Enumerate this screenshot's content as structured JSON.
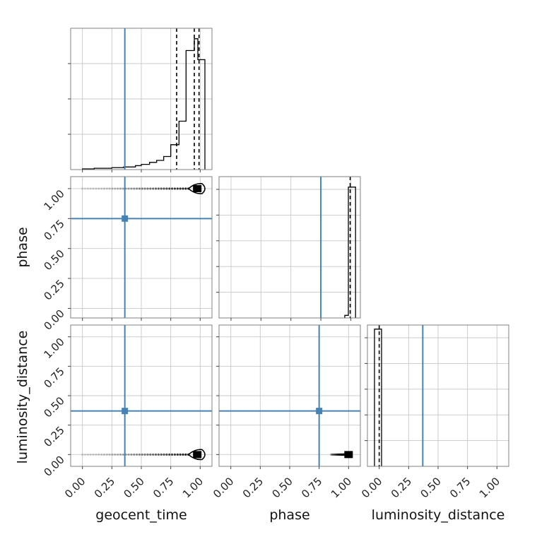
{
  "chart_data": {
    "type": "corner",
    "parameters": [
      "geocent_time",
      "phase",
      "luminosity_distance"
    ],
    "tick_labels": [
      "0.00",
      "0.25",
      "0.50",
      "0.75",
      "1.00"
    ],
    "truths": {
      "geocent_time": 0.36,
      "phase": 0.75,
      "luminosity_distance": 0.37
    },
    "truth_color": "#4682b4",
    "grid": true,
    "diagonals": [
      {
        "parameter": "geocent_time",
        "xlim": [
          -0.1,
          1.1
        ],
        "bins": [
          {
            "start": 0.0,
            "end": 0.1,
            "height": 0.005
          },
          {
            "start": 0.1,
            "end": 0.25,
            "height": 0.01
          },
          {
            "start": 0.25,
            "end": 0.35,
            "height": 0.015
          },
          {
            "start": 0.35,
            "end": 0.45,
            "height": 0.02
          },
          {
            "start": 0.45,
            "end": 0.5,
            "height": 0.03
          },
          {
            "start": 0.5,
            "end": 0.57,
            "height": 0.04
          },
          {
            "start": 0.57,
            "end": 0.63,
            "height": 0.055
          },
          {
            "start": 0.63,
            "end": 0.69,
            "height": 0.07
          },
          {
            "start": 0.69,
            "end": 0.75,
            "height": 0.1
          },
          {
            "start": 0.75,
            "end": 0.82,
            "height": 0.19
          },
          {
            "start": 0.82,
            "end": 0.88,
            "height": 0.37
          },
          {
            "start": 0.88,
            "end": 0.95,
            "height": 0.91
          },
          {
            "start": 0.95,
            "end": 0.98,
            "height": 1.0
          },
          {
            "start": 0.98,
            "end": 1.04,
            "height": 0.84
          }
        ],
        "quantiles": [
          0.8,
          0.95,
          0.99
        ],
        "ylim": [
          0,
          1.08
        ]
      },
      {
        "parameter": "phase",
        "xlim": [
          -0.1,
          1.08
        ],
        "bins": [
          {
            "start": 0.95,
            "end": 0.98,
            "height": 0.02
          },
          {
            "start": 0.98,
            "end": 1.04,
            "height": 1.0
          }
        ],
        "quantiles": [
          0.995
        ],
        "ylim": [
          0,
          1.08
        ]
      },
      {
        "parameter": "luminosity_distance",
        "xlim": [
          -0.1,
          1.1
        ],
        "bins": [
          {
            "start": -0.04,
            "end": 0.02,
            "height": 1.0
          }
        ],
        "quantiles": [
          0.0
        ],
        "ylim": [
          0,
          1.03
        ]
      }
    ],
    "panels_2d": [
      {
        "x": "geocent_time",
        "y": "phase",
        "xlim": [
          -0.1,
          1.1
        ],
        "ylim": [
          -0.08,
          1.1
        ],
        "scatter_streak": {
          "x_from": 0.0,
          "x_to": 0.9,
          "y": 1.0
        },
        "density_peak": {
          "x": 0.975,
          "y": 1.0
        },
        "contour_x_extent": [
          0.9,
          1.04
        ]
      },
      {
        "x": "geocent_time",
        "y": "luminosity_distance",
        "xlim": [
          -0.1,
          1.1
        ],
        "ylim": [
          -0.1,
          1.1
        ],
        "scatter_streak": {
          "x_from": 0.0,
          "x_to": 0.9,
          "y": 0.0
        },
        "density_peak": {
          "x": 0.975,
          "y": 0.0
        },
        "contour_x_extent": [
          0.9,
          1.04
        ]
      },
      {
        "x": "phase",
        "y": "luminosity_distance",
        "xlim": [
          -0.1,
          1.1
        ],
        "ylim": [
          -0.1,
          1.1
        ],
        "scatter_streak": {
          "x_from": 0.85,
          "x_to": 0.98,
          "y": 0.0
        },
        "density_peak": {
          "x": 1.0,
          "y": 0.0
        },
        "contour_x_extent": null
      }
    ]
  }
}
